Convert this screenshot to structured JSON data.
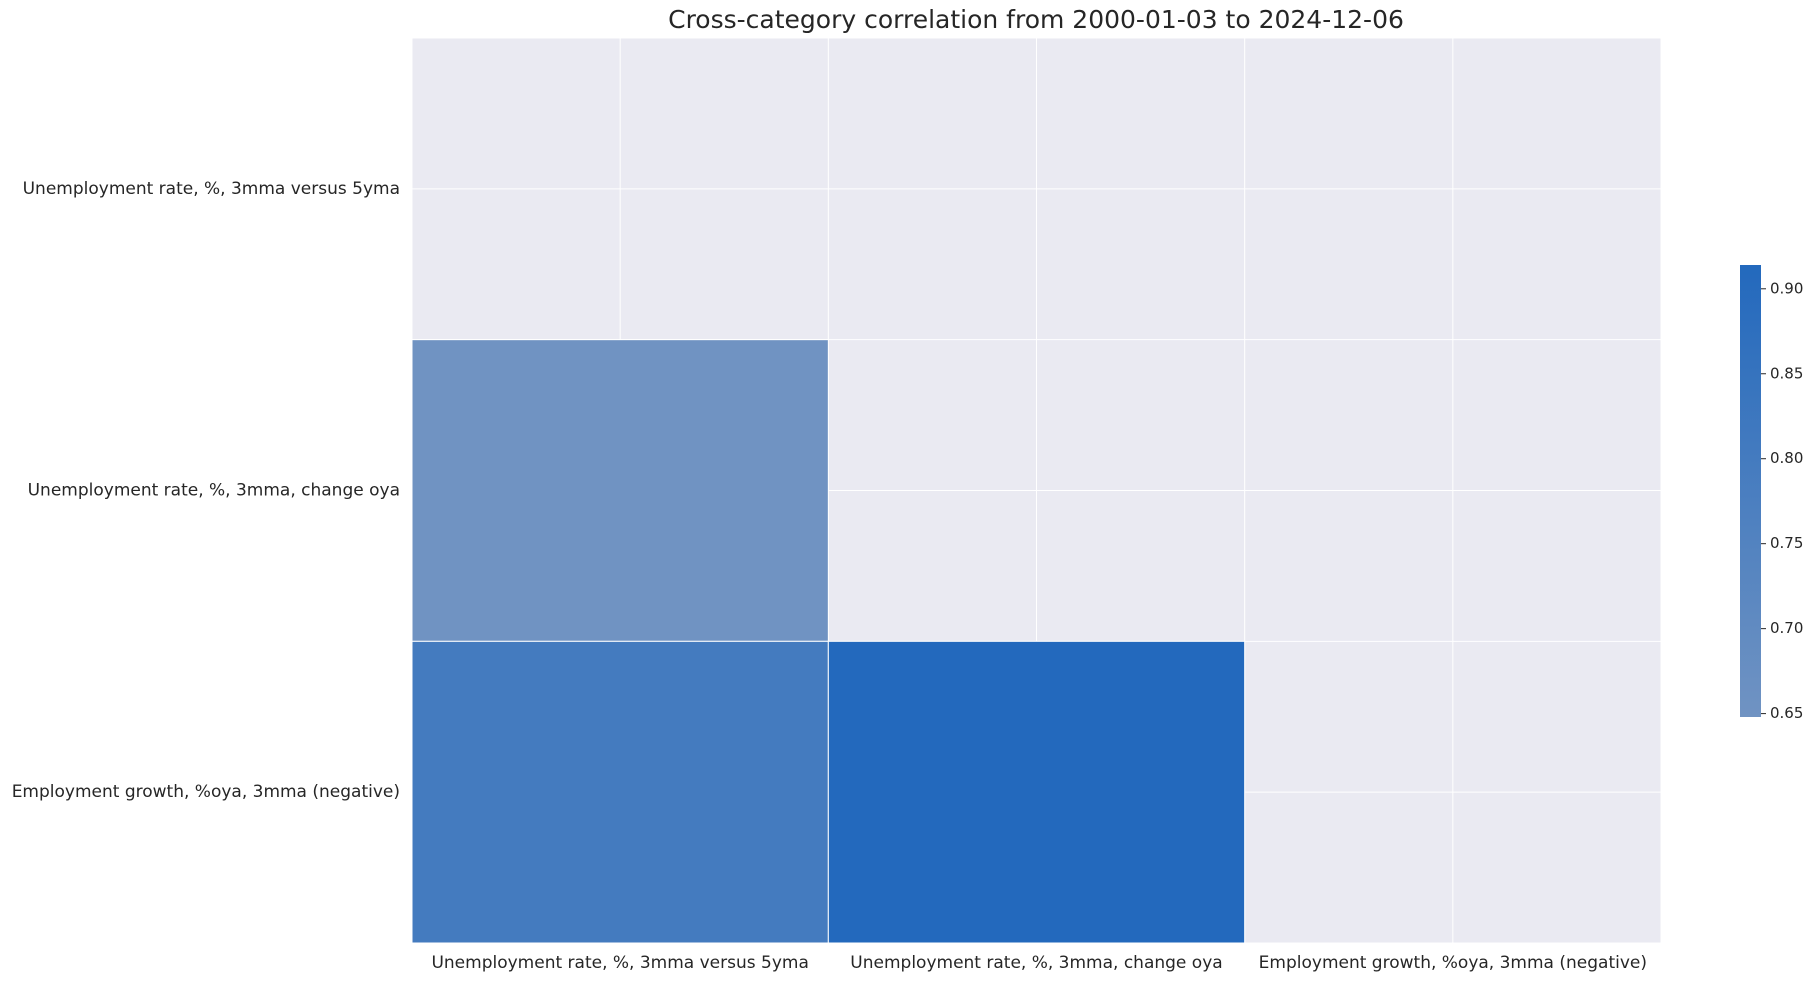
{
  "chart_data": {
    "type": "heatmap",
    "title": "Cross-category correlation from 2000-01-03 to 2024-12-06",
    "rows": [
      "Unemployment rate, %, 3mma versus 5yma",
      "Unemployment rate, %, 3mma, change oya",
      "Employment growth, %oya, 3mma (negative)"
    ],
    "columns": [
      "Unemployment rate, %, 3mma versus 5yma",
      "Unemployment rate, %, 3mma, change oya",
      "Employment growth, %oya, 3mma (negative)"
    ],
    "values": [
      [
        null,
        null,
        null
      ],
      [
        0.648,
        null,
        null
      ],
      [
        0.8,
        0.914,
        null
      ]
    ],
    "cmap": [
      "#7093c2",
      "#2369bd"
    ],
    "colorbar_lim": [
      0.648,
      0.914
    ],
    "colorbar_ticks": [
      0.65,
      0.7,
      0.75,
      0.8,
      0.85,
      0.9
    ]
  }
}
